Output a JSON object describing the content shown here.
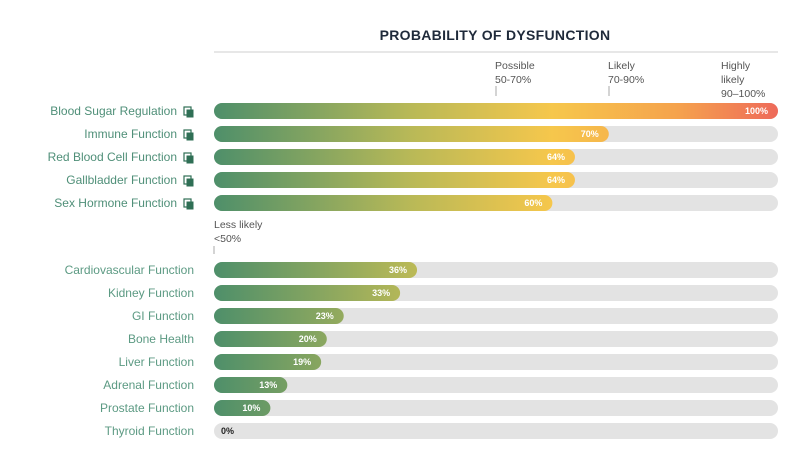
{
  "colors": {
    "track": "#e3e3e3",
    "green": "#4e8f6a",
    "yellow": "#f6c74c",
    "orange": "#f48a52",
    "red": "#ee6a5a",
    "label": "#4f8f78"
  },
  "chart_data": {
    "type": "bar",
    "orientation": "horizontal",
    "title": "PROBABILITY OF DYSFUNCTION",
    "xlim": [
      0,
      100
    ],
    "bands": [
      {
        "line1": "Less likely",
        "line2": "<50%",
        "line3": "",
        "threshold": 0
      },
      {
        "line1": "Possible",
        "line2": "50-70%",
        "line3": "",
        "threshold": 50
      },
      {
        "line1": "Likely",
        "line2": "70-90%",
        "line3": "",
        "threshold": 70
      },
      {
        "line1": "Highly",
        "line2": "likely",
        "line3": "90–100%",
        "threshold": 90
      }
    ],
    "groups": [
      {
        "name": "high",
        "rows": [
          {
            "label": "Blood Sugar Regulation",
            "value": 100,
            "value_label": "100%",
            "icon": "copy-icon"
          },
          {
            "label": "Immune Function",
            "value": 70,
            "value_label": "70%",
            "icon": "copy-icon"
          },
          {
            "label": "Red Blood Cell Function",
            "value": 64,
            "value_label": "64%",
            "icon": "copy-icon"
          },
          {
            "label": "Gallbladder Function",
            "value": 64,
            "value_label": "64%",
            "icon": "copy-icon"
          },
          {
            "label": "Sex Hormone Function",
            "value": 60,
            "value_label": "60%",
            "icon": "copy-icon"
          }
        ]
      },
      {
        "name": "low",
        "rows": [
          {
            "label": "Cardiovascular Function",
            "value": 36,
            "value_label": "36%"
          },
          {
            "label": "Kidney Function",
            "value": 33,
            "value_label": "33%"
          },
          {
            "label": "GI Function",
            "value": 23,
            "value_label": "23%"
          },
          {
            "label": "Bone Health",
            "value": 20,
            "value_label": "20%"
          },
          {
            "label": "Liver Function",
            "value": 19,
            "value_label": "19%"
          },
          {
            "label": "Adrenal Function",
            "value": 13,
            "value_label": "13%"
          },
          {
            "label": "Prostate Function",
            "value": 10,
            "value_label": "10%"
          },
          {
            "label": "Thyroid Function",
            "value": 0,
            "value_label": "0%"
          }
        ]
      }
    ]
  }
}
